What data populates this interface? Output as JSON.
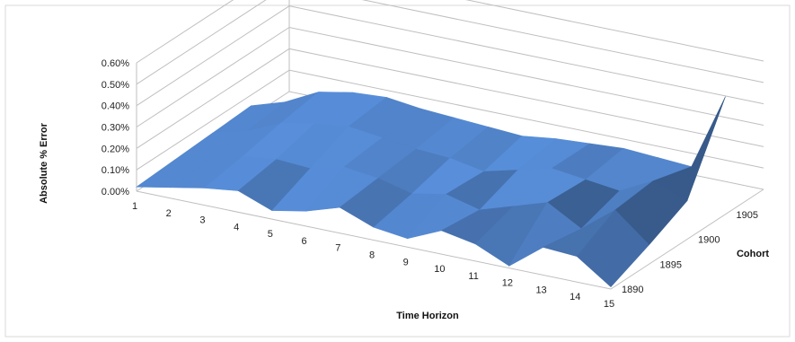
{
  "chart_data": {
    "type": "surface",
    "title": "",
    "xlabel": "Time Horizon",
    "ylabel": "Absolute % Error",
    "zlabel": "Cohort",
    "x": [
      1,
      2,
      3,
      4,
      5,
      6,
      7,
      8,
      9,
      10,
      11,
      12,
      13,
      14,
      15
    ],
    "y_ticks": [
      "0.00%",
      "0.10%",
      "0.20%",
      "0.30%",
      "0.40%",
      "0.50%",
      "0.60%"
    ],
    "ylim": [
      0,
      0.006
    ],
    "series": [
      {
        "name": "1890",
        "values": [
          0.0002,
          0.0005,
          0.0008,
          0.001,
          0.0004,
          0.0007,
          0.0012,
          0.0006,
          0.0004,
          0.0011,
          0.0008,
          0.0001,
          0.0013,
          0.0012,
          0.0001
        ]
      },
      {
        "name": "1895",
        "values": [
          0.0003,
          0.0006,
          0.0011,
          0.0013,
          0.0012,
          0.0016,
          0.0014,
          0.001,
          0.0013,
          0.0009,
          0.0014,
          0.0019,
          0.001,
          0.0022,
          0.0009
        ]
      },
      {
        "name": "1900",
        "values": [
          0.0004,
          0.0008,
          0.0015,
          0.0018,
          0.002,
          0.0018,
          0.0016,
          0.0015,
          0.0012,
          0.0016,
          0.002,
          0.0018,
          0.0016,
          0.0024,
          0.0018
        ]
      },
      {
        "name": "1905",
        "values": [
          0.0005,
          0.001,
          0.0018,
          0.0021,
          0.0022,
          0.002,
          0.0019,
          0.0018,
          0.0017,
          0.0019,
          0.002,
          0.0021,
          0.002,
          0.0019,
          0.0055
        ]
      }
    ],
    "grid": true,
    "legend": "none",
    "colors": {
      "surface": "#4a78b8",
      "surface_light": "#6a9ad6",
      "surface_dark": "#1f3a5f",
      "grid": "#bfbfbf",
      "border": "#d9d9d9"
    }
  }
}
